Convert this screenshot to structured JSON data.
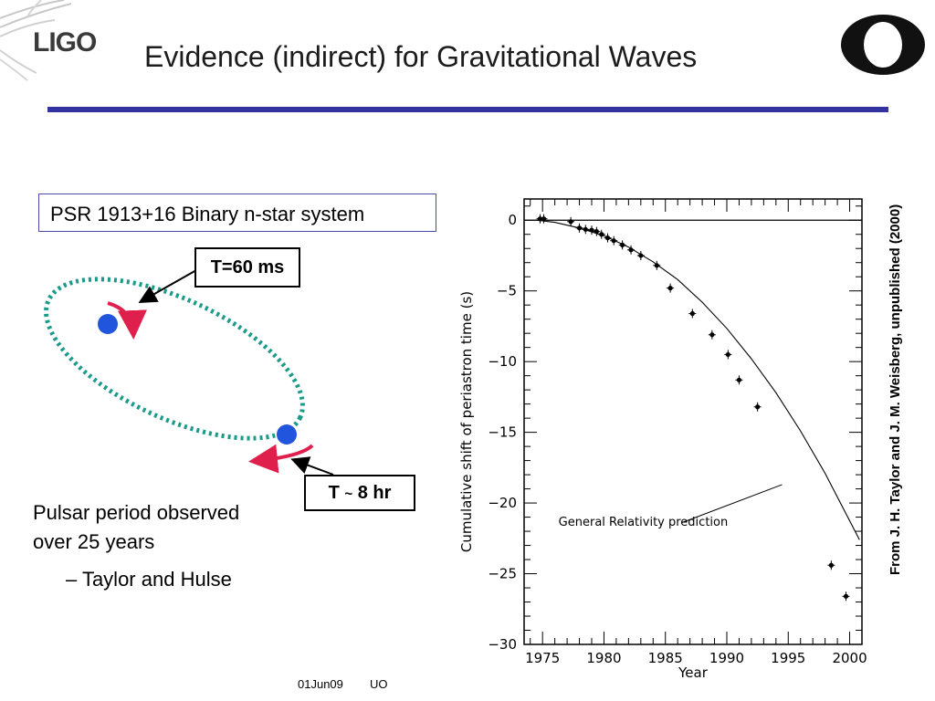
{
  "header": {
    "logo_text": "LIGO",
    "title": "Evidence (indirect) for Gravitational Waves",
    "uo_logo": "O"
  },
  "left": {
    "system_label": "PSR 1913+16 Binary n-star system",
    "callout_pulse": "T=60 ms",
    "callout_orbit_prefix": "T",
    "callout_orbit_tilde": "~",
    "callout_orbit_suffix": "8 hr",
    "pulsar_line1": "Pulsar period observed",
    "pulsar_line2": "over 25 years",
    "credit": "– Taylor and Hulse",
    "colors": {
      "orbit": "#1a9a8a",
      "star": "#2255dd",
      "arrow": "#e0204c"
    }
  },
  "source_note": "From J. H. Taylor and J. M. Weisberg, unpublished (2000)",
  "footer": {
    "date": "01Jun09",
    "org": "UO"
  },
  "chart_data": {
    "type": "scatter",
    "xlabel": "Year",
    "ylabel": "Cumulative shift of periastron time (s)",
    "xlim": [
      1973.5,
      2001
    ],
    "ylim": [
      -30,
      1.5
    ],
    "xticks": [
      1975,
      1980,
      1985,
      1990,
      1995,
      2000
    ],
    "yticks": [
      0,
      -5,
      -10,
      -15,
      -20,
      -25,
      -30
    ],
    "reference_line_y": 0,
    "curve_label": "General Relativity prediction",
    "series": [
      {
        "type": "scatter",
        "x": [
          1974.8,
          1975.1,
          1977.3,
          1978.0,
          1978.5,
          1979.0,
          1979.4,
          1979.8,
          1980.3,
          1980.8,
          1981.5,
          1982.2,
          1983.0,
          1984.3,
          1985.4,
          1987.2,
          1988.8,
          1990.1,
          1991.0,
          1992.5,
          1998.5,
          1999.7
        ],
        "y": [
          0.1,
          0.1,
          -0.1,
          -0.55,
          -0.65,
          -0.7,
          -0.8,
          -1.0,
          -1.25,
          -1.45,
          -1.75,
          -2.1,
          -2.5,
          -3.2,
          -4.8,
          -6.6,
          -8.1,
          -9.5,
          -11.3,
          -13.2,
          -24.4,
          -26.6
        ]
      },
      {
        "type": "line",
        "x": [
          1974.5,
          1976,
          1978,
          1980,
          1982,
          1984,
          1986,
          1988,
          1990,
          1992,
          1994,
          1996,
          1998,
          2000.8
        ],
        "y": [
          0.0,
          -0.15,
          -0.55,
          -1.1,
          -1.9,
          -2.95,
          -4.2,
          -5.8,
          -7.65,
          -9.8,
          -12.2,
          -14.9,
          -17.9,
          -22.6
        ]
      }
    ]
  }
}
